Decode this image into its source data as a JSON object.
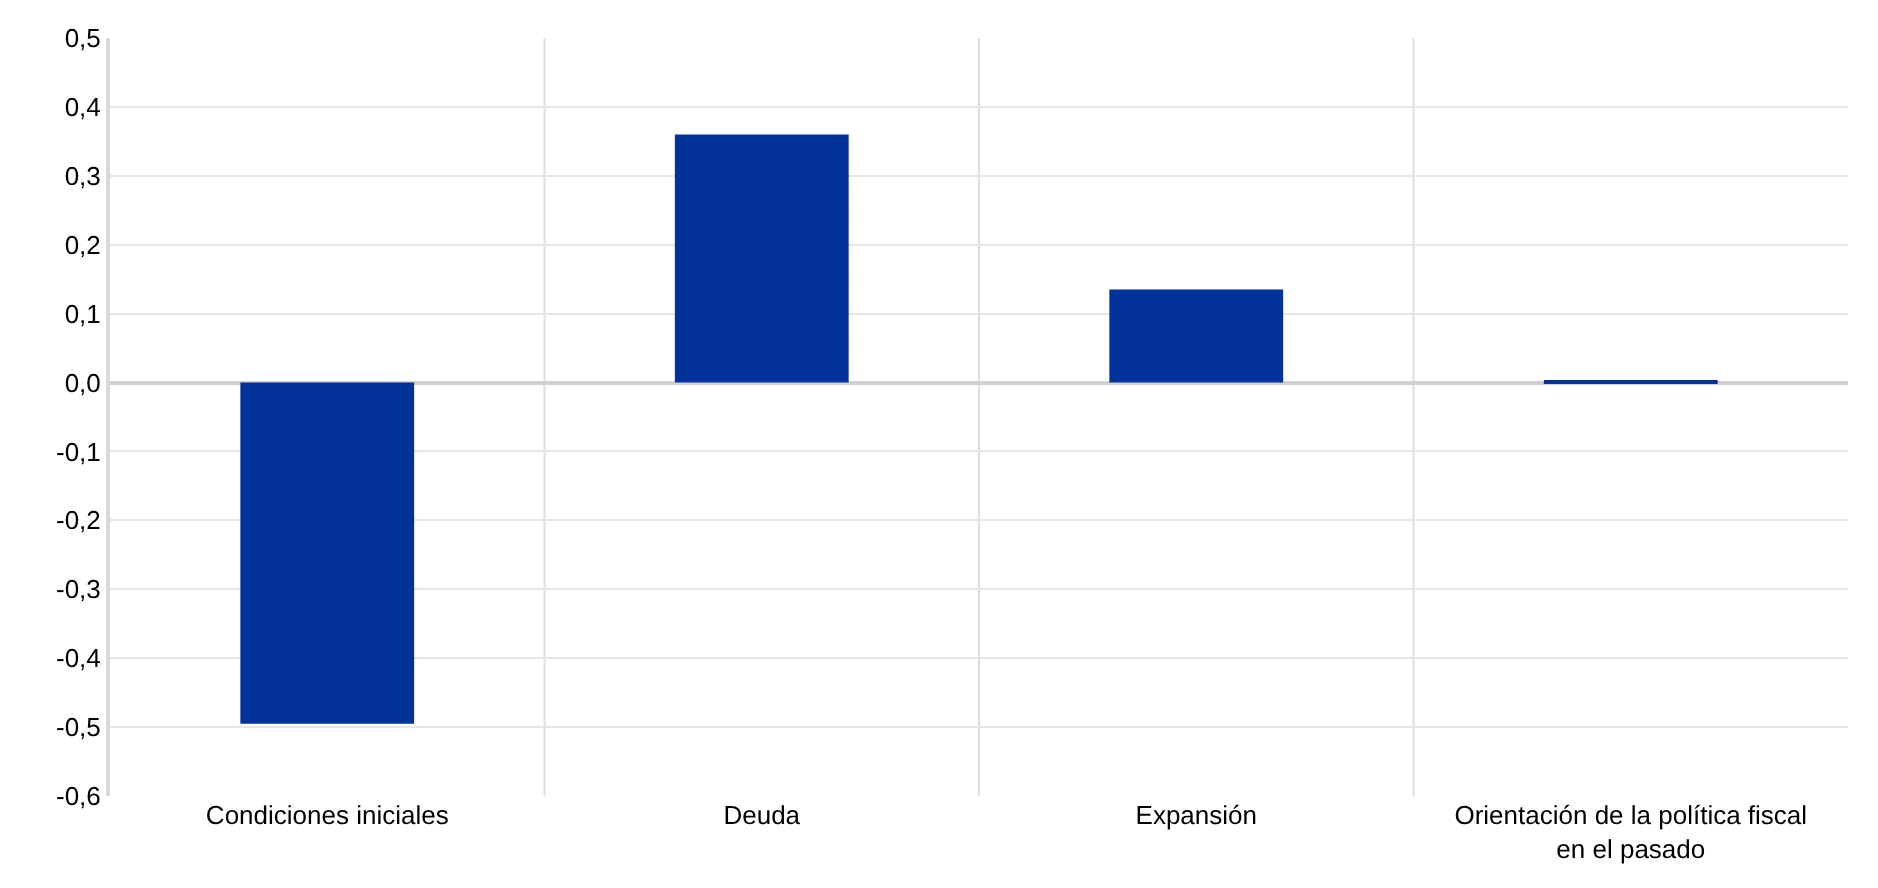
{
  "chart_data": {
    "type": "bar",
    "categories": [
      "Condiciones iniciales",
      "Deuda",
      "Expansión",
      "Orientación de la política fiscal\nen el pasado"
    ],
    "series": [
      {
        "color": "#003299",
        "values": [
          -0.495,
          0.36,
          0.135,
          0.002
        ]
      }
    ],
    "ylim": [
      -0.6,
      0.5
    ],
    "yticks": [
      {
        "value": -0.6,
        "label": "-0,6"
      },
      {
        "value": -0.5,
        "label": "-0,5"
      },
      {
        "value": -0.4,
        "label": "-0,4"
      },
      {
        "value": -0.3,
        "label": "-0,3"
      },
      {
        "value": -0.2,
        "label": "-0,2"
      },
      {
        "value": -0.1,
        "label": "-0,1"
      },
      {
        "value": 0,
        "label": "0,0"
      },
      {
        "value": 0.1,
        "label": "0,1"
      },
      {
        "value": 0.2,
        "label": "0,2"
      },
      {
        "value": 0.3,
        "label": "0,3"
      },
      {
        "value": 0.4,
        "label": "0,4"
      },
      {
        "value": 0.5,
        "label": "0,5"
      }
    ],
    "grid": true
  }
}
